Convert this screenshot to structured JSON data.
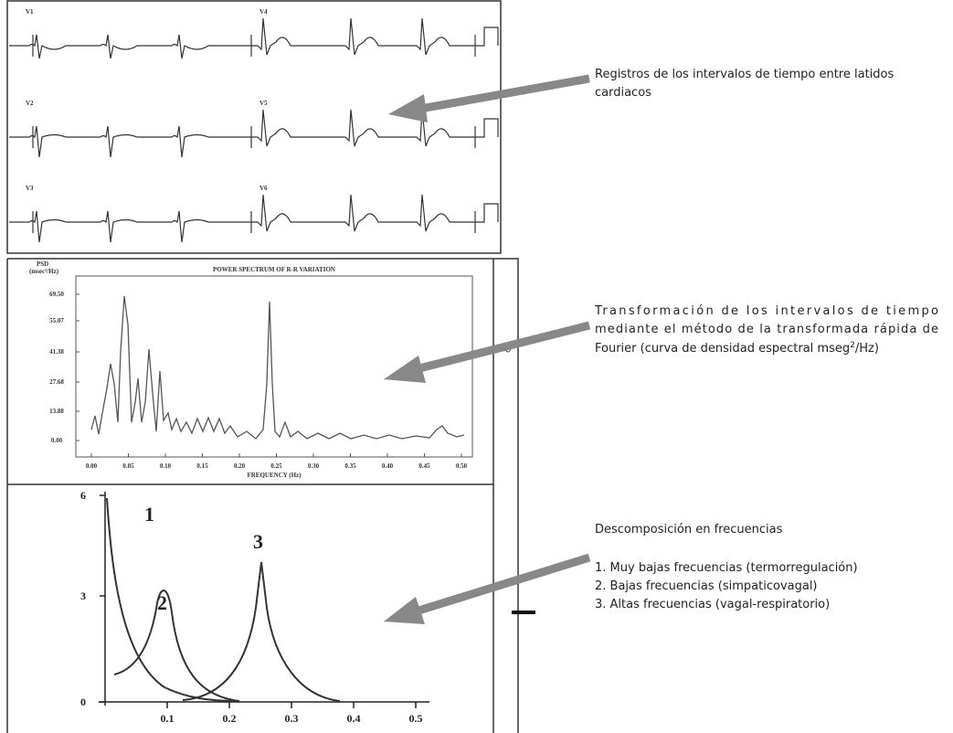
{
  "ecg": {
    "leads": [
      "V1",
      "V4",
      "V2",
      "V5",
      "V3",
      "V6"
    ]
  },
  "spectrum": {
    "title": "POWER SPECTRUM OF R-R VARIATION",
    "y_label": [
      "PSD",
      "(msec²/Hz)"
    ],
    "yticks": [
      "69.50",
      "55.07",
      "41.38",
      "27.68",
      "13.88",
      "0.00"
    ],
    "xticks": [
      "0.00",
      "0.05",
      "0.10",
      "0.15",
      "0.20",
      "0.25",
      "0.30",
      "0.35",
      "0.40",
      "0.45",
      "0.50"
    ],
    "x_label": "FREQUENCY (Hz)"
  },
  "decomposition": {
    "yticks": [
      "6",
      "3",
      "0"
    ],
    "xticks": [
      "0.1",
      "0.2",
      "0.3",
      "0.4",
      "0.5"
    ],
    "curve_labels": [
      "1",
      "2",
      "3"
    ]
  },
  "annotations": [
    {
      "lines": [
        "Registros de los intervalos de  tiempo entre latidos",
        "cardiacos"
      ]
    },
    {
      "lines": [
        "Transformación de los intervalos de tiempo",
        "mediante el método de la transformada rápida de"
      ],
      "last_line": {
        "before": "Fourier (curva de densidad espectral mseg",
        "sup": "2",
        "after": "/Hz)"
      }
    },
    {
      "title": "Descomposición en frecuencias",
      "lines": [
        "1. Muy bajas frecuencias (termorregulación)",
        "2. Bajas frecuencias (simpaticovagal)",
        "3. Altas frecuencias (vagal-respiratorio)"
      ]
    }
  ]
}
